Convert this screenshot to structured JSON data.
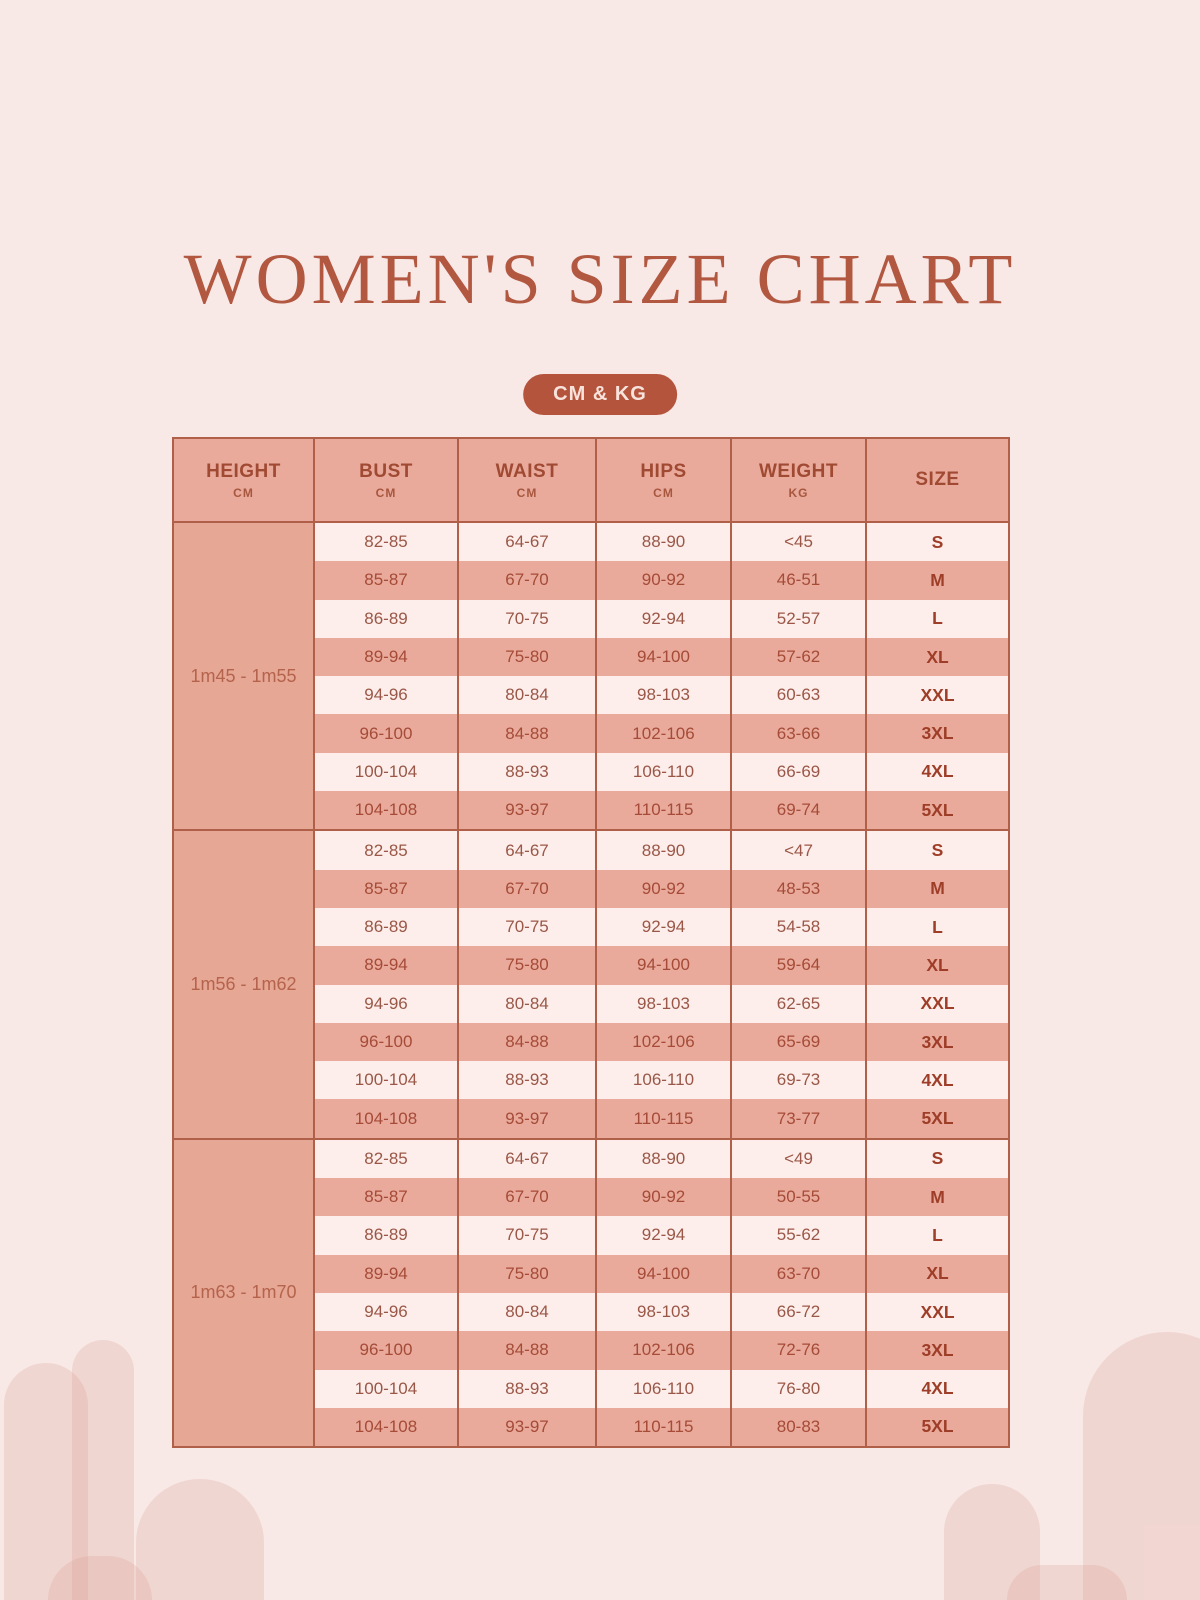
{
  "title": "WOMEN'S SIZE CHART",
  "units_badge": "CM & KG",
  "colors": {
    "background": "#f8e8e6",
    "accent": "#b5543c",
    "table_border": "#b06049",
    "header_row_bg": "#e9aa9b",
    "pink_row_bg": "#e9aa9b",
    "light_row_bg": "#fdeeeb",
    "height_cell_bg": "#e7a795",
    "title_text": "#b25740",
    "badge_text": "#f8e3dc",
    "cell_text_light_row": "#9a5747",
    "cell_text_pink_row": "#a54b37",
    "size_text": "#9e3d28",
    "decor_arch": "#f0d6d1"
  },
  "chart_data": {
    "type": "table",
    "title": "WOMEN'S SIZE CHART",
    "units": "CM & KG",
    "columns": [
      {
        "label": "HEIGHT",
        "unit": "CM"
      },
      {
        "label": "BUST",
        "unit": "CM"
      },
      {
        "label": "WAIST",
        "unit": "CM"
      },
      {
        "label": "HIPS",
        "unit": "CM"
      },
      {
        "label": "WEIGHT",
        "unit": "KG"
      },
      {
        "label": "SIZE",
        "unit": ""
      }
    ],
    "groups": [
      {
        "height": "1m45 - 1m55",
        "rows": [
          {
            "bust": "82-85",
            "waist": "64-67",
            "hips": "88-90",
            "weight": "<45",
            "size": "S"
          },
          {
            "bust": "85-87",
            "waist": "67-70",
            "hips": "90-92",
            "weight": "46-51",
            "size": "M"
          },
          {
            "bust": "86-89",
            "waist": "70-75",
            "hips": "92-94",
            "weight": "52-57",
            "size": "L"
          },
          {
            "bust": "89-94",
            "waist": "75-80",
            "hips": "94-100",
            "weight": "57-62",
            "size": "XL"
          },
          {
            "bust": "94-96",
            "waist": "80-84",
            "hips": "98-103",
            "weight": "60-63",
            "size": "XXL"
          },
          {
            "bust": "96-100",
            "waist": "84-88",
            "hips": "102-106",
            "weight": "63-66",
            "size": "3XL"
          },
          {
            "bust": "100-104",
            "waist": "88-93",
            "hips": "106-110",
            "weight": "66-69",
            "size": "4XL"
          },
          {
            "bust": "104-108",
            "waist": "93-97",
            "hips": "110-115",
            "weight": "69-74",
            "size": "5XL"
          }
        ]
      },
      {
        "height": "1m56 - 1m62",
        "rows": [
          {
            "bust": "82-85",
            "waist": "64-67",
            "hips": "88-90",
            "weight": "<47",
            "size": "S"
          },
          {
            "bust": "85-87",
            "waist": "67-70",
            "hips": "90-92",
            "weight": "48-53",
            "size": "M"
          },
          {
            "bust": "86-89",
            "waist": "70-75",
            "hips": "92-94",
            "weight": "54-58",
            "size": "L"
          },
          {
            "bust": "89-94",
            "waist": "75-80",
            "hips": "94-100",
            "weight": "59-64",
            "size": "XL"
          },
          {
            "bust": "94-96",
            "waist": "80-84",
            "hips": "98-103",
            "weight": "62-65",
            "size": "XXL"
          },
          {
            "bust": "96-100",
            "waist": "84-88",
            "hips": "102-106",
            "weight": "65-69",
            "size": "3XL"
          },
          {
            "bust": "100-104",
            "waist": "88-93",
            "hips": "106-110",
            "weight": "69-73",
            "size": "4XL"
          },
          {
            "bust": "104-108",
            "waist": "93-97",
            "hips": "110-115",
            "weight": "73-77",
            "size": "5XL"
          }
        ]
      },
      {
        "height": "1m63 - 1m70",
        "rows": [
          {
            "bust": "82-85",
            "waist": "64-67",
            "hips": "88-90",
            "weight": "<49",
            "size": "S"
          },
          {
            "bust": "85-87",
            "waist": "67-70",
            "hips": "90-92",
            "weight": "50-55",
            "size": "M"
          },
          {
            "bust": "86-89",
            "waist": "70-75",
            "hips": "92-94",
            "weight": "55-62",
            "size": "L"
          },
          {
            "bust": "89-94",
            "waist": "75-80",
            "hips": "94-100",
            "weight": "63-70",
            "size": "XL"
          },
          {
            "bust": "94-96",
            "waist": "80-84",
            "hips": "98-103",
            "weight": "66-72",
            "size": "XXL"
          },
          {
            "bust": "96-100",
            "waist": "84-88",
            "hips": "102-106",
            "weight": "72-76",
            "size": "3XL"
          },
          {
            "bust": "100-104",
            "waist": "88-93",
            "hips": "106-110",
            "weight": "76-80",
            "size": "4XL"
          },
          {
            "bust": "104-108",
            "waist": "93-97",
            "hips": "110-115",
            "weight": "80-83",
            "size": "5XL"
          }
        ]
      }
    ]
  }
}
